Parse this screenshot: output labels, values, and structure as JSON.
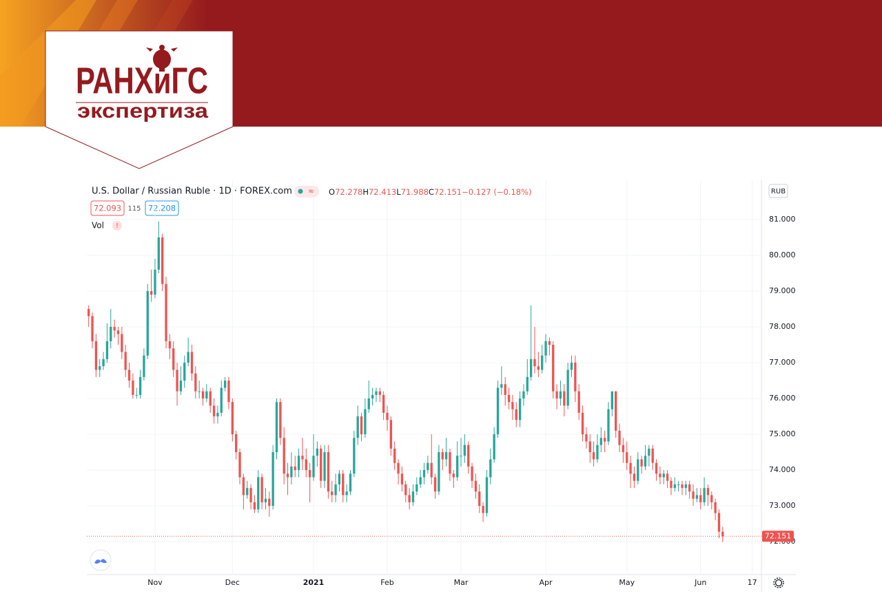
{
  "header": {
    "logo_title": "РАНХиГС",
    "logo_subtitle": "экспертиза"
  },
  "chart_data": {
    "type": "candlestick",
    "title": "U.S. Dollar / Russian Ruble · 1D · FOREX.com",
    "ohlc_legend": {
      "open_label": "O",
      "high_label": "H",
      "low_label": "L",
      "close_label": "C",
      "change": "−0.127 (−0.18%)"
    },
    "quote": {
      "bid": 72.093,
      "spread": 115,
      "ask": 72.208
    },
    "indicator": "Vol",
    "warning": "!",
    "currency": "RUB",
    "up_color": "#26a69a",
    "down_color": "#ef5350",
    "grid": true,
    "xlim": [
      0.5,
      183.5
    ],
    "xticks": [
      {
        "value": 19,
        "label": "Nov"
      },
      {
        "value": 40,
        "label": "Dec"
      },
      {
        "value": 62,
        "label": "2021"
      },
      {
        "value": 82,
        "label": "Feb"
      },
      {
        "value": 102,
        "label": "Mar"
      },
      {
        "value": 125,
        "label": "Apr"
      },
      {
        "value": 147,
        "label": "May"
      },
      {
        "value": 167,
        "label": "Jun"
      },
      {
        "value": 181,
        "label": "17"
      }
    ],
    "ylim": [
      71.08,
      81.98
    ],
    "yticks": [
      {
        "value": 72,
        "label": "72.000"
      },
      {
        "value": 73,
        "label": "73.000"
      },
      {
        "value": 74,
        "label": "74.000"
      },
      {
        "value": 75,
        "label": "75.000"
      },
      {
        "value": 76,
        "label": "76.000"
      },
      {
        "value": 77,
        "label": "77.000"
      },
      {
        "value": 78,
        "label": "78.000"
      },
      {
        "value": 79,
        "label": "79.000"
      },
      {
        "value": 80,
        "label": "80.000"
      },
      {
        "value": 81,
        "label": "81.000"
      }
    ],
    "x": [
      1,
      2,
      3,
      4,
      5,
      6,
      7,
      8,
      9,
      10,
      11,
      12,
      13,
      14,
      15,
      16,
      17,
      18,
      19,
      20,
      21,
      22,
      23,
      24,
      25,
      26,
      27,
      28,
      29,
      30,
      31,
      32,
      33,
      34,
      35,
      36,
      37,
      38,
      39,
      40,
      41,
      42,
      43,
      44,
      45,
      46,
      47,
      48,
      49,
      50,
      51,
      52,
      53,
      54,
      55,
      56,
      57,
      58,
      59,
      60,
      61,
      62,
      63,
      64,
      65,
      66,
      67,
      68,
      69,
      70,
      71,
      72,
      73,
      74,
      75,
      76,
      77,
      78,
      79,
      80,
      81,
      82,
      83,
      84,
      85,
      86,
      87,
      88,
      89,
      90,
      91,
      92,
      93,
      94,
      95,
      96,
      97,
      98,
      99,
      100,
      101,
      102,
      103,
      104,
      105,
      106,
      107,
      108,
      109,
      110,
      111,
      112,
      113,
      114,
      115,
      116,
      117,
      118,
      119,
      120,
      121,
      122,
      123,
      124,
      125,
      126,
      127,
      128,
      129,
      130,
      131,
      132,
      133,
      134,
      135,
      136,
      137,
      138,
      139,
      140,
      141,
      142,
      143,
      144,
      145,
      146,
      147,
      148,
      149,
      150,
      151,
      152,
      153,
      154,
      155,
      156,
      157,
      158,
      159,
      160,
      161,
      162,
      163,
      164,
      165,
      166,
      167,
      168,
      169,
      170,
      171,
      172,
      173
    ],
    "open": [
      78.5,
      78.3,
      77.6,
      76.8,
      76.9,
      77.1,
      77.6,
      78.0,
      77.9,
      77.8,
      77.3,
      76.8,
      76.5,
      76.1,
      76.1,
      76.6,
      77.2,
      79.0,
      78.9,
      79.6,
      80.5,
      79.2,
      77.6,
      77.4,
      76.8,
      76.2,
      76.5,
      77.0,
      77.3,
      76.7,
      76.2,
      76.2,
      76.0,
      76.2,
      75.8,
      75.5,
      75.6,
      76.3,
      76.5,
      75.9,
      75.0,
      74.5,
      73.8,
      73.3,
      73.5,
      73.1,
      72.9,
      73.8,
      73.1,
      73.2,
      73.0,
      74.5,
      75.9,
      74.9,
      73.9,
      73.8,
      74.1,
      74.0,
      74.4,
      74.3,
      74.0,
      73.8,
      74.4,
      74.6,
      73.7,
      74.5,
      73.4,
      73.3,
      73.6,
      73.9,
      73.3,
      73.4,
      73.9,
      74.9,
      75.5,
      75.0,
      75.7,
      76.0,
      76.1,
      76.2,
      76.1,
      75.6,
      75.4,
      74.6,
      74.2,
      73.9,
      73.6,
      73.3,
      73.1,
      73.4,
      73.6,
      73.8,
      74.0,
      74.2,
      73.8,
      73.4,
      74.5,
      74.3,
      74.5,
      73.9,
      73.8,
      74.4,
      74.4,
      74.7,
      74.1,
      73.7,
      73.4,
      73.0,
      72.8,
      73.8,
      74.3,
      75.0,
      76.3,
      76.4,
      76.1,
      75.9,
      75.7,
      75.4,
      76.0,
      76.2,
      76.6,
      77.1,
      76.9,
      76.8,
      77.2,
      77.6,
      77.5,
      76.2,
      76.0,
      76.2,
      75.8,
      76.8,
      77.0,
      76.2,
      75.6,
      75.0,
      74.8,
      74.5,
      74.3,
      74.7,
      74.9,
      74.8,
      75.7,
      76.2,
      75.1,
      74.7,
      74.5,
      74.2,
      73.9,
      73.7,
      74.3,
      74.1,
      74.4,
      74.6,
      74.2,
      73.9,
      73.8,
      73.9,
      73.7,
      73.5,
      73.6,
      73.6,
      73.5,
      73.6,
      73.4,
      73.2,
      73.3,
      73.1,
      73.5,
      73.3,
      73.1,
      72.8,
      72.278
    ],
    "high": [
      78.6,
      78.4,
      77.8,
      77.1,
      77.3,
      78.1,
      78.5,
      78.2,
      78.0,
      78.0,
      77.5,
      77.0,
      76.7,
      76.3,
      76.8,
      77.4,
      79.2,
      79.6,
      79.9,
      80.95,
      80.6,
      79.4,
      77.8,
      77.6,
      77.0,
      76.9,
      77.2,
      77.7,
      77.5,
      76.9,
      76.5,
      76.3,
      76.4,
      76.3,
      76.0,
      75.8,
      76.5,
      76.6,
      76.6,
      76.0,
      75.1,
      74.6,
      73.9,
      73.7,
      73.6,
      73.3,
      74.0,
      73.9,
      73.5,
      73.4,
      74.7,
      76.0,
      76.0,
      75.2,
      74.2,
      74.5,
      74.4,
      74.6,
      74.9,
      74.6,
      74.2,
      75.0,
      74.8,
      74.7,
      74.7,
      74.7,
      73.7,
      73.9,
      74.0,
      74.0,
      73.6,
      74.0,
      75.1,
      75.8,
      75.6,
      76.0,
      76.5,
      76.3,
      76.3,
      76.3,
      76.2,
      75.8,
      75.5,
      74.8,
      74.3,
      74.1,
      73.7,
      73.5,
      73.6,
      73.8,
      74.0,
      74.2,
      74.4,
      75.0,
      73.9,
      74.7,
      74.6,
      74.9,
      74.6,
      74.0,
      74.8,
      74.9,
      75.0,
      74.8,
      74.2,
      73.9,
      73.6,
      73.1,
      74.0,
      74.6,
      75.2,
      76.5,
      76.9,
      76.6,
      76.3,
      76.1,
      75.9,
      76.2,
      76.4,
      77.1,
      78.6,
      78.0,
      77.3,
      77.5,
      77.8,
      77.7,
      77.6,
      76.4,
      76.5,
      76.4,
      77.0,
      77.2,
      77.2,
      76.4,
      75.8,
      75.2,
      75.0,
      74.8,
      75.0,
      75.2,
      75.1,
      75.9,
      76.2,
      76.2,
      75.3,
      74.9,
      74.8,
      74.4,
      74.1,
      74.5,
      74.4,
      74.7,
      74.7,
      74.7,
      74.3,
      74.1,
      74.0,
      74.0,
      73.8,
      73.8,
      73.7,
      73.7,
      73.7,
      73.7,
      73.6,
      73.5,
      73.5,
      73.8,
      73.6,
      73.4,
      73.2,
      72.9,
      72.413
    ],
    "low": [
      78.0,
      77.4,
      76.6,
      76.6,
      76.8,
      77.0,
      77.4,
      77.7,
      77.5,
      77.1,
      76.6,
      76.3,
      76.0,
      76.0,
      76.0,
      76.5,
      77.1,
      78.7,
      78.8,
      79.5,
      79.0,
      77.4,
      77.1,
      76.6,
      75.8,
      76.1,
      76.3,
      76.9,
      76.5,
      76.0,
      76.0,
      75.8,
      75.9,
      75.6,
      75.3,
      75.3,
      75.5,
      76.2,
      75.7,
      74.8,
      74.3,
      73.6,
      72.9,
      73.2,
      72.9,
      72.8,
      72.8,
      72.9,
      72.9,
      72.7,
      72.9,
      74.3,
      74.7,
      73.6,
      73.3,
      73.6,
      73.8,
      73.8,
      74.0,
      73.8,
      73.1,
      73.7,
      74.1,
      73.5,
      73.5,
      73.2,
      73.1,
      73.1,
      73.4,
      73.1,
      73.1,
      73.3,
      73.8,
      74.7,
      74.8,
      74.9,
      75.6,
      75.8,
      75.9,
      75.9,
      75.4,
      75.1,
      74.4,
      74.0,
      73.6,
      73.4,
      73.1,
      72.9,
      73.0,
      73.3,
      73.5,
      73.6,
      73.9,
      73.6,
      73.2,
      73.3,
      74.0,
      74.1,
      73.7,
      73.5,
      73.7,
      74.1,
      74.2,
      73.9,
      73.5,
      73.2,
      72.8,
      72.55,
      72.7,
      73.6,
      74.2,
      74.9,
      76.1,
      75.8,
      75.7,
      75.4,
      75.2,
      75.2,
      75.8,
      76.1,
      76.5,
      76.7,
      76.6,
      76.7,
      77.0,
      77.2,
      76.0,
      75.7,
      75.8,
      75.5,
      75.7,
      76.6,
      75.9,
      75.4,
      74.8,
      74.6,
      74.2,
      74.1,
      74.2,
      74.5,
      74.5,
      74.7,
      75.5,
      74.9,
      74.5,
      74.2,
      74.0,
      73.5,
      73.5,
      73.6,
      73.9,
      74.0,
      74.1,
      74.0,
      73.7,
      73.6,
      73.6,
      73.5,
      73.3,
      73.4,
      73.4,
      73.3,
      73.3,
      73.2,
      73.0,
      73.1,
      72.9,
      73.0,
      73.0,
      72.9,
      72.6,
      72.1,
      71.988
    ],
    "close": [
      78.3,
      77.6,
      76.8,
      76.9,
      77.1,
      77.6,
      78.0,
      77.9,
      77.8,
      77.3,
      76.8,
      76.5,
      76.1,
      76.1,
      76.6,
      77.2,
      79.0,
      78.9,
      79.6,
      80.5,
      79.2,
      77.6,
      77.4,
      76.8,
      76.2,
      76.5,
      77.0,
      77.3,
      76.7,
      76.2,
      76.2,
      76.0,
      76.2,
      75.8,
      75.5,
      75.6,
      76.3,
      76.5,
      75.9,
      75.0,
      74.5,
      73.8,
      73.3,
      73.5,
      73.1,
      72.9,
      73.8,
      73.1,
      73.2,
      73.0,
      74.5,
      75.9,
      74.9,
      73.9,
      73.8,
      74.1,
      74.0,
      74.4,
      74.3,
      74.0,
      73.8,
      74.4,
      74.6,
      73.7,
      74.5,
      73.4,
      73.3,
      73.6,
      73.9,
      73.3,
      73.4,
      73.9,
      74.9,
      75.5,
      75.0,
      75.7,
      76.0,
      76.1,
      76.2,
      76.1,
      75.6,
      75.4,
      74.6,
      74.2,
      73.9,
      73.6,
      73.3,
      73.1,
      73.4,
      73.6,
      73.8,
      74.0,
      74.2,
      73.8,
      73.4,
      74.5,
      74.3,
      74.5,
      73.9,
      73.8,
      74.4,
      74.4,
      74.7,
      74.1,
      73.7,
      73.4,
      73.0,
      72.8,
      73.8,
      74.3,
      75.0,
      76.3,
      76.4,
      76.1,
      75.9,
      75.7,
      75.4,
      76.0,
      76.2,
      76.6,
      77.1,
      76.9,
      76.8,
      77.2,
      77.6,
      77.5,
      76.2,
      76.0,
      76.2,
      75.8,
      76.8,
      77.0,
      76.2,
      75.6,
      75.0,
      74.8,
      74.5,
      74.3,
      74.7,
      74.9,
      74.8,
      75.7,
      76.2,
      75.1,
      74.7,
      74.5,
      74.2,
      73.9,
      73.7,
      74.3,
      74.1,
      74.4,
      74.6,
      74.2,
      73.9,
      73.8,
      73.9,
      73.7,
      73.5,
      73.6,
      73.6,
      73.5,
      73.6,
      73.4,
      73.2,
      73.3,
      73.1,
      73.5,
      73.3,
      73.1,
      72.8,
      72.278,
      72.151
    ]
  }
}
